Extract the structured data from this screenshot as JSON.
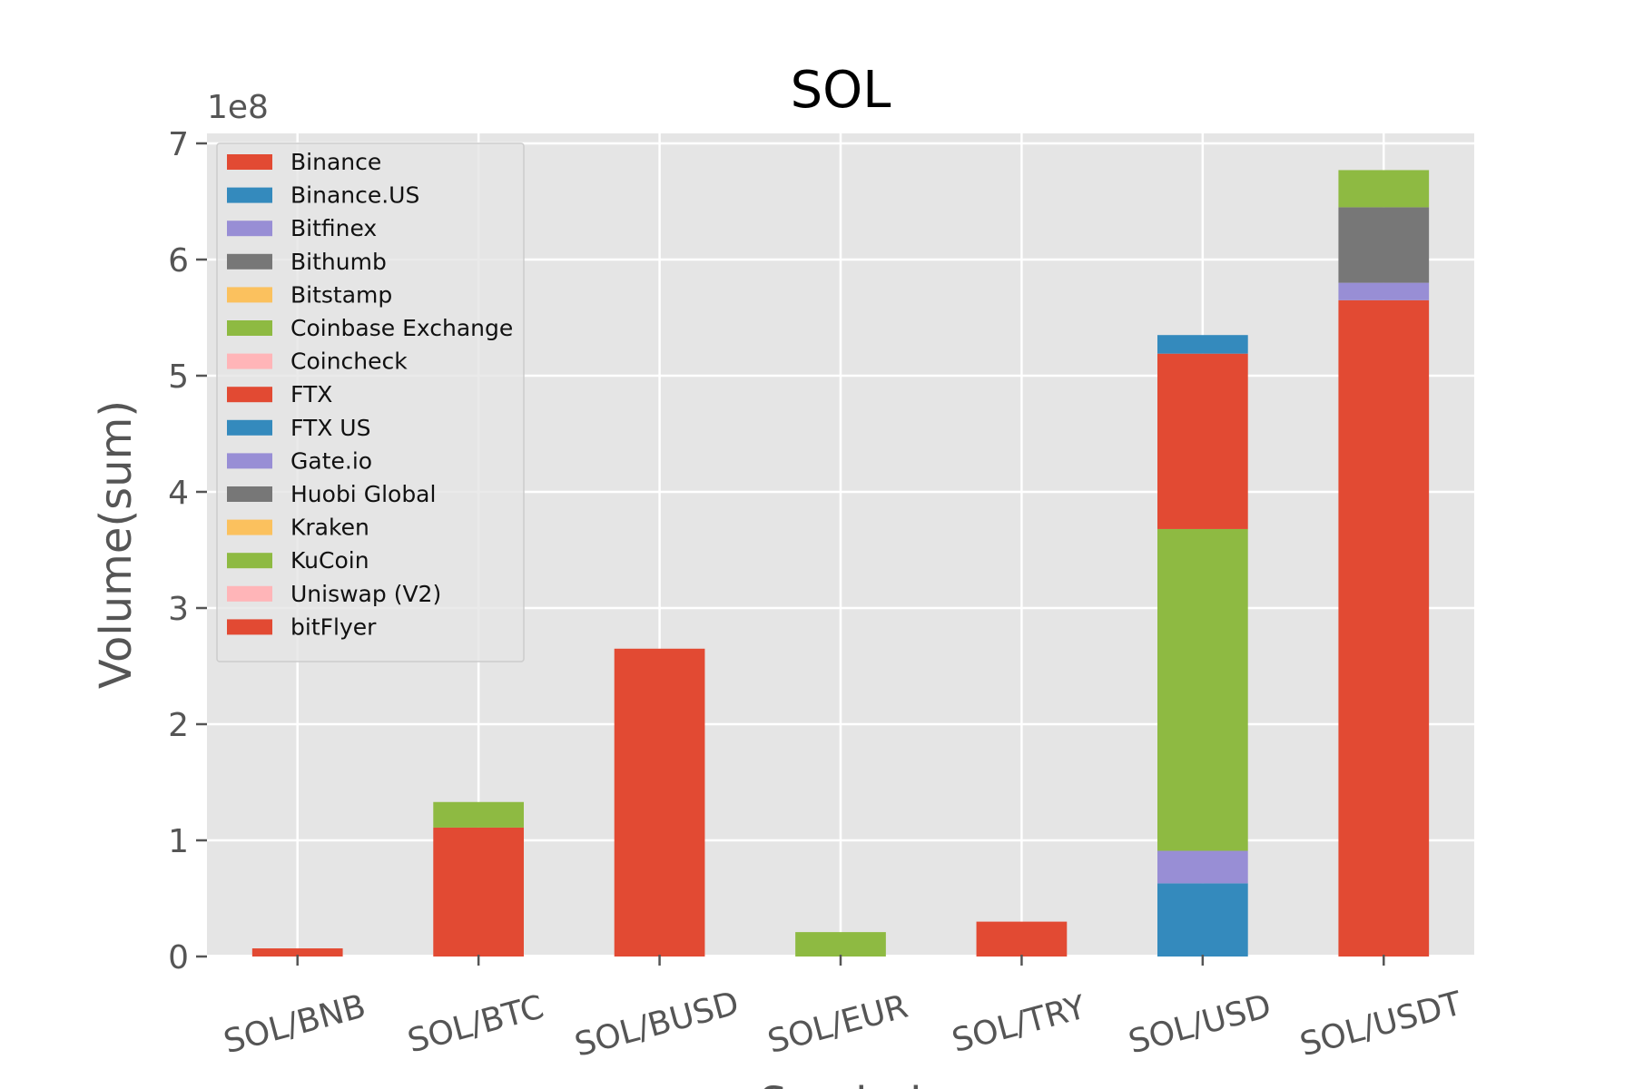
{
  "chart_data": {
    "type": "bar",
    "stacked": true,
    "title": "SOL",
    "ylabel": "Volume(sum)",
    "xlabel": "Symbol",
    "y_offset_text": "1e8",
    "y_scale": 100000000,
    "ylim": [
      0,
      700000000
    ],
    "yticks": [
      0,
      1,
      2,
      3,
      4,
      5,
      6,
      7
    ],
    "grid": true,
    "legend_position": "top-left",
    "categories": [
      "SOL/BNB",
      "SOL/BTC",
      "SOL/BUSD",
      "SOL/EUR",
      "SOL/TRY",
      "SOL/USD",
      "SOL/USDT"
    ],
    "series": [
      {
        "name": "Binance",
        "color": "#E24A33",
        "values": [
          7000000,
          111000000,
          265000000,
          0,
          30000000,
          0,
          565000000
        ]
      },
      {
        "name": "Binance.US",
        "color": "#348ABD",
        "values": [
          0,
          0,
          0,
          0,
          0,
          63000000,
          0
        ]
      },
      {
        "name": "Bitfinex",
        "color": "#988ED5",
        "values": [
          0,
          0,
          0,
          0,
          0,
          28000000,
          0
        ]
      },
      {
        "name": "Bithumb",
        "color": "#777777",
        "values": [
          0,
          0,
          0,
          0,
          0,
          0,
          0
        ]
      },
      {
        "name": "Bitstamp",
        "color": "#FBC15E",
        "values": [
          0,
          0,
          0,
          0,
          0,
          0,
          0
        ]
      },
      {
        "name": "Coinbase Exchange",
        "color": "#8EBA42",
        "values": [
          0,
          0,
          0,
          21000000,
          0,
          277000000,
          0
        ]
      },
      {
        "name": "Coincheck",
        "color": "#FFB5B8",
        "values": [
          0,
          0,
          0,
          0,
          0,
          0,
          0
        ]
      },
      {
        "name": "FTX",
        "color": "#E24A33",
        "values": [
          0,
          0,
          0,
          0,
          0,
          151000000,
          0
        ]
      },
      {
        "name": "FTX US",
        "color": "#348ABD",
        "values": [
          0,
          0,
          0,
          0,
          0,
          16000000,
          0
        ]
      },
      {
        "name": "Gate.io",
        "color": "#988ED5",
        "values": [
          0,
          0,
          0,
          0,
          0,
          0,
          15000000
        ]
      },
      {
        "name": "Huobi Global",
        "color": "#777777",
        "values": [
          0,
          0,
          0,
          0,
          0,
          0,
          65000000
        ]
      },
      {
        "name": "Kraken",
        "color": "#FBC15E",
        "values": [
          0,
          0,
          0,
          0,
          0,
          0,
          0
        ]
      },
      {
        "name": "KuCoin",
        "color": "#8EBA42",
        "values": [
          0,
          22000000,
          0,
          0,
          0,
          0,
          32000000
        ]
      },
      {
        "name": "Uniswap (V2)",
        "color": "#FFB5B8",
        "values": [
          0,
          0,
          0,
          0,
          0,
          0,
          0
        ]
      },
      {
        "name": "bitFlyer",
        "color": "#E24A33",
        "values": [
          0,
          0,
          0,
          0,
          0,
          0,
          0
        ]
      }
    ]
  }
}
